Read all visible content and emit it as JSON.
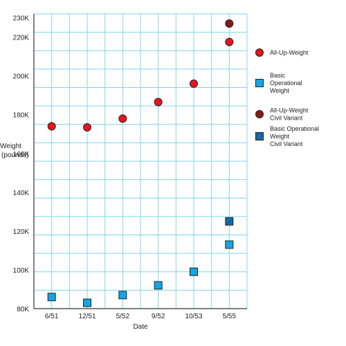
{
  "chart_data": {
    "type": "scatter",
    "title": "",
    "xlabel": "Date",
    "ylabel": "Weight\n(pounds)",
    "categories": [
      "6/51",
      "12/51",
      "5/52",
      "9/52",
      "10/53",
      "5/55"
    ],
    "ylim": [
      80000,
      232000
    ],
    "y_ticks": [
      {
        "value": 80000,
        "label": "80K"
      },
      {
        "value": 100000,
        "label": "100K"
      },
      {
        "value": 120000,
        "label": "120K"
      },
      {
        "value": 140000,
        "label": "140K"
      },
      {
        "value": 160000,
        "label": "160K"
      },
      {
        "value": 180000,
        "label": "180K"
      },
      {
        "value": 200000,
        "label": "200K"
      },
      {
        "value": 220000,
        "label": "220K"
      },
      {
        "value": 230000,
        "label": "230K"
      }
    ],
    "grid": true,
    "legend_position": "right",
    "series": [
      {
        "name": "All-Up-Weight",
        "marker": "circle",
        "color": "#e8141c",
        "values": [
          174000,
          173500,
          178000,
          186500,
          196000,
          217500
        ]
      },
      {
        "name": "Basic Operational Weight",
        "marker": "square",
        "color": "#12a6e6",
        "values": [
          86000,
          83000,
          87000,
          92000,
          99000,
          113000
        ]
      },
      {
        "name": "All-Up-Weight Civil Variant",
        "marker": "circle",
        "color": "#8b1a1a",
        "values": [
          null,
          null,
          null,
          null,
          null,
          227000
        ]
      },
      {
        "name": "Basic Operational Weight Civil Variant",
        "marker": "square",
        "color": "#1567a8",
        "values": [
          null,
          null,
          null,
          null,
          null,
          125000
        ]
      }
    ],
    "legend": [
      {
        "lines": [
          "All-Up-Weight"
        ],
        "marker": "circle",
        "color": "#e8141c"
      },
      {
        "lines": [
          "Basic",
          "Operational",
          "Weight"
        ],
        "marker": "square",
        "color": "#12a6e6"
      },
      {
        "lines": [
          "All-Up-Weight",
          "Civil Variant"
        ],
        "marker": "circle",
        "color": "#8b1a1a"
      },
      {
        "lines": [
          "Basic Operational",
          "Weight",
          "Civil Variant"
        ],
        "marker": "square",
        "color": "#1567a8"
      }
    ],
    "colors": {
      "grid": "#7fd4ec",
      "axis": "#333333",
      "marker_stroke": "#222222"
    }
  }
}
